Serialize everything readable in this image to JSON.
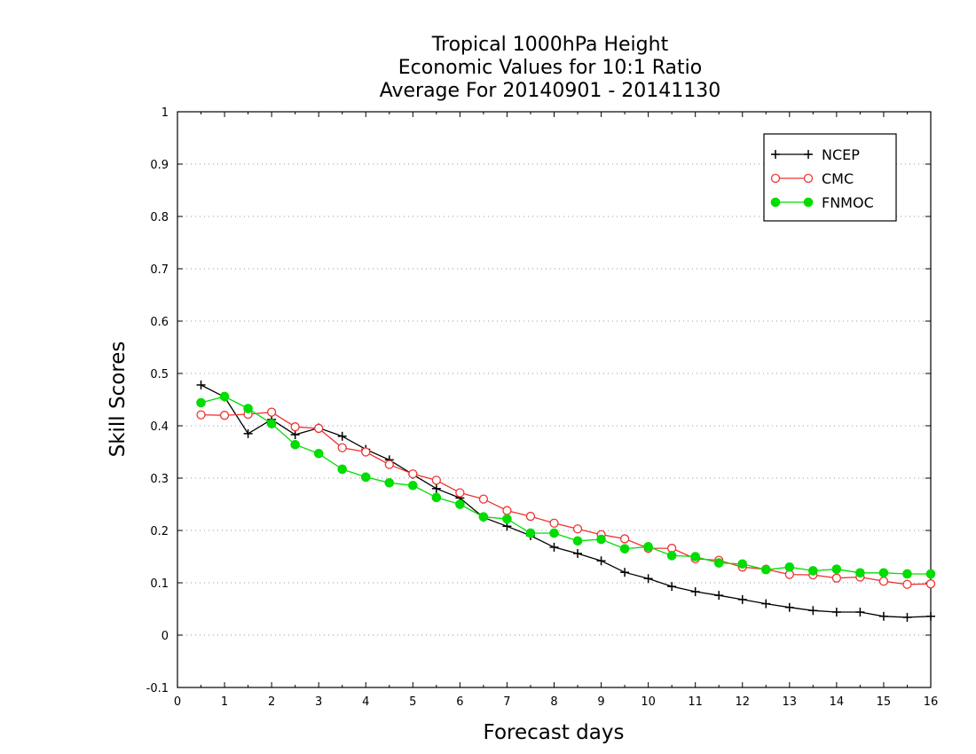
{
  "chart_data": {
    "type": "line",
    "title_lines": [
      "Tropical 1000hPa Height",
      "Economic Values for 10:1 Ratio",
      "Average For 20140901 - 20141130"
    ],
    "xlabel": "Forecast days",
    "ylabel": "Skill Scores",
    "xlim": [
      0,
      16
    ],
    "ylim": [
      -0.1,
      1
    ],
    "xticks": [
      "0",
      "1",
      "2",
      "3",
      "4",
      "5",
      "6",
      "7",
      "8",
      "9",
      "10",
      "11",
      "12",
      "13",
      "14",
      "15",
      "16"
    ],
    "yticks": [
      "-0.1",
      "0",
      "0.1",
      "0.2",
      "0.3",
      "0.4",
      "0.5",
      "0.6",
      "0.7",
      "0.8",
      "0.9",
      "1"
    ],
    "grid": true,
    "legend_position": "top-right",
    "x": [
      0.5,
      1,
      1.5,
      2,
      2.5,
      3,
      3.5,
      4,
      4.5,
      5,
      5.5,
      6,
      6.5,
      7,
      7.5,
      8,
      8.5,
      9,
      9.5,
      10,
      10.5,
      11,
      11.5,
      12,
      12.5,
      13,
      13.5,
      14,
      14.5,
      15,
      15.5,
      16
    ],
    "series": [
      {
        "name": "NCEP",
        "color": "#000000",
        "marker": "plus",
        "values": [
          0.478,
          0.455,
          0.385,
          0.412,
          0.383,
          0.396,
          0.38,
          0.355,
          0.335,
          0.307,
          0.28,
          0.262,
          0.225,
          0.208,
          0.19,
          0.168,
          0.156,
          0.142,
          0.12,
          0.108,
          0.093,
          0.083,
          0.076,
          0.068,
          0.06,
          0.053,
          0.047,
          0.044,
          0.044,
          0.036,
          0.034,
          0.036
        ]
      },
      {
        "name": "CMC",
        "color": "#ee3333",
        "marker": "open-circle",
        "values": [
          0.421,
          0.42,
          0.422,
          0.426,
          0.398,
          0.395,
          0.358,
          0.35,
          0.326,
          0.308,
          0.296,
          0.272,
          0.26,
          0.238,
          0.227,
          0.214,
          0.203,
          0.192,
          0.184,
          0.166,
          0.166,
          0.146,
          0.143,
          0.13,
          0.126,
          0.116,
          0.115,
          0.109,
          0.111,
          0.103,
          0.097,
          0.098
        ]
      },
      {
        "name": "FNMOC",
        "color": "#00dd00",
        "marker": "filled-circle",
        "values": [
          0.444,
          0.456,
          0.433,
          0.404,
          0.364,
          0.347,
          0.317,
          0.302,
          0.291,
          0.286,
          0.263,
          0.25,
          0.226,
          0.222,
          0.195,
          0.195,
          0.18,
          0.183,
          0.165,
          0.169,
          0.152,
          0.15,
          0.138,
          0.136,
          0.125,
          0.13,
          0.123,
          0.126,
          0.119,
          0.119,
          0.117,
          0.117
        ]
      }
    ]
  }
}
